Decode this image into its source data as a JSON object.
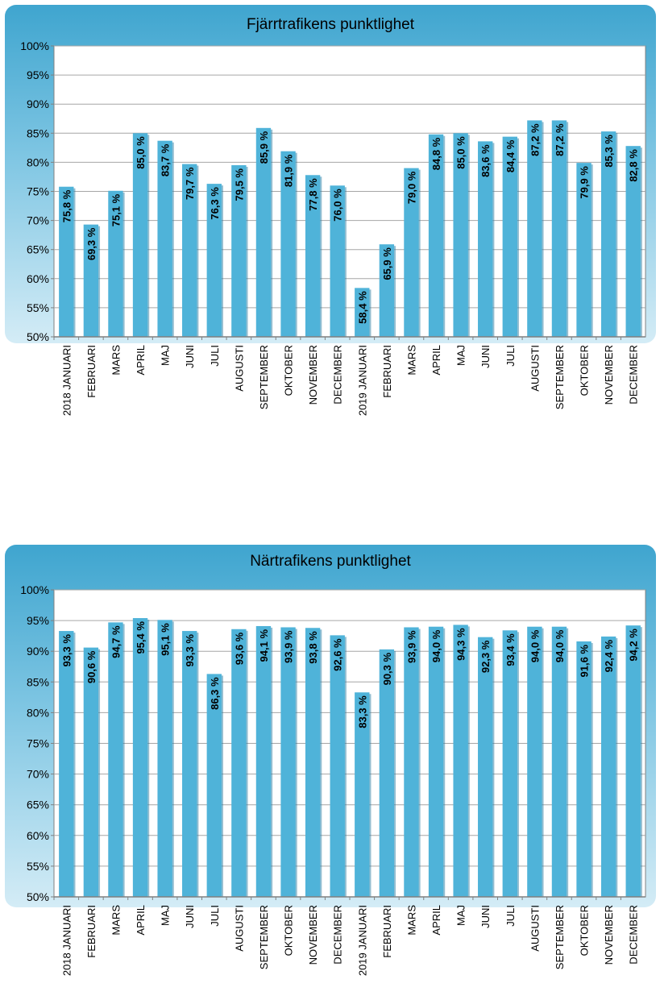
{
  "chart_data": [
    {
      "type": "bar",
      "title": "Fjärrtrafikens punktlighet",
      "categories": [
        "2018 JANUARI",
        "FEBRUARI",
        "MARS",
        "APRIL",
        "MAJ",
        "JUNI",
        "JULI",
        "AUGUSTI",
        "SEPTEMBER",
        "OKTOBER",
        "NOVEMBER",
        "DECEMBER",
        "2019 JANUARI",
        "FEBRUARI",
        "MARS",
        "APRIL",
        "MAJ",
        "JUNI",
        "JULI",
        "AUGUSTI",
        "SEPTEMBER",
        "OKTOBER",
        "NOVEMBER",
        "DECEMBER"
      ],
      "values": [
        75.8,
        69.3,
        75.1,
        85.0,
        83.7,
        79.7,
        76.3,
        79.5,
        85.9,
        81.9,
        77.8,
        76.0,
        58.4,
        65.9,
        79.0,
        84.8,
        85.0,
        83.6,
        84.4,
        87.2,
        87.2,
        79.9,
        85.3,
        82.8
      ],
      "labels": [
        "75,8 %",
        "69,3 %",
        "75,1 %",
        "85,0 %",
        "83,7 %",
        "79,7 %",
        "76,3 %",
        "79,5 %",
        "85,9 %",
        "81,9 %",
        "77,8 %",
        "76,0 %",
        "58,4 %",
        "65,9 %",
        "79,0 %",
        "84,8 %",
        "85,0 %",
        "83,6 %",
        "84,4 %",
        "87,2 %",
        "87,2 %",
        "79,9 %",
        "85,3 %",
        "82,8 %"
      ],
      "yticks": [
        "50%",
        "55%",
        "60%",
        "65%",
        "70%",
        "75%",
        "80%",
        "85%",
        "90%",
        "95%",
        "100%"
      ],
      "ylim": [
        50,
        100
      ],
      "grid": true,
      "bar_color": "#4fb3d9"
    },
    {
      "type": "bar",
      "title": "Närtrafikens punktlighet",
      "categories": [
        "2018 JANUARI",
        "FEBRUARI",
        "MARS",
        "APRIL",
        "MAJ",
        "JUNI",
        "JULI",
        "AUGUSTI",
        "SEPTEMBER",
        "OKTOBER",
        "NOVEMBER",
        "DECEMBER",
        "2019 JANUARI",
        "FEBRUARI",
        "MARS",
        "APRIL",
        "MAJ",
        "JUNI",
        "JULI",
        "AUGUSTI",
        "SEPTEMBER",
        "OKTOBER",
        "NOVEMBER",
        "DECEMBER"
      ],
      "values": [
        93.3,
        90.6,
        94.7,
        95.4,
        95.1,
        93.3,
        86.3,
        93.6,
        94.1,
        93.9,
        93.8,
        92.6,
        83.3,
        90.3,
        93.9,
        94.0,
        94.3,
        92.3,
        93.4,
        94.0,
        94.0,
        91.6,
        92.4,
        94.2
      ],
      "labels": [
        "93,3 %",
        "90,6 %",
        "94,7 %",
        "95,4 %",
        "95,1 %",
        "93,3 %",
        "86,3 %",
        "93,6 %",
        "94,1 %",
        "93,9 %",
        "93,8 %",
        "92,6 %",
        "83,3 %",
        "90,3 %",
        "93,9 %",
        "94,0 %",
        "94,3 %",
        "92,3 %",
        "93,4 %",
        "94,0 %",
        "94,0 %",
        "91,6 %",
        "92,4 %",
        "94,2 %"
      ],
      "yticks": [
        "50%",
        "55%",
        "60%",
        "65%",
        "70%",
        "75%",
        "80%",
        "85%",
        "90%",
        "95%",
        "100%"
      ],
      "ylim": [
        50,
        100
      ],
      "grid": true,
      "bar_color": "#4fb3d9"
    }
  ]
}
